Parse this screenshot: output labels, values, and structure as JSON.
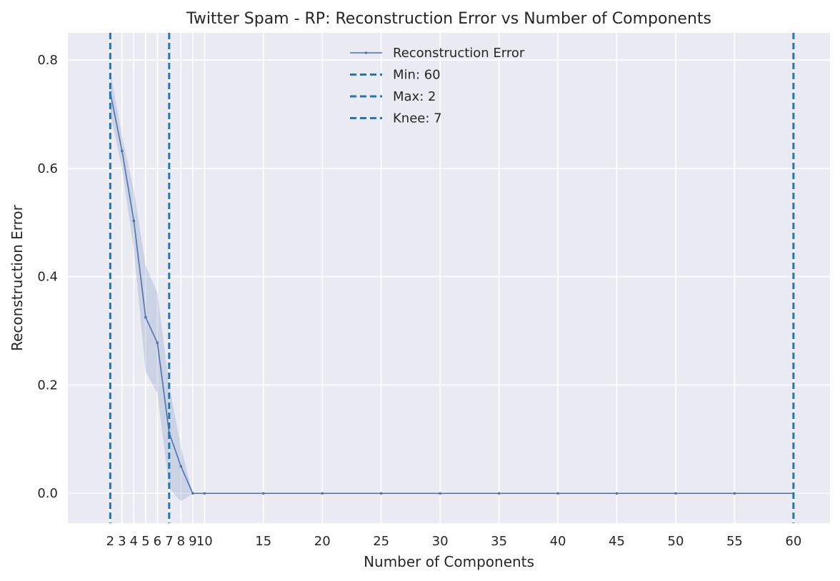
{
  "chart_data": {
    "type": "line",
    "title": "Twitter Spam - RP: Reconstruction Error vs Number of Components",
    "xlabel": "Number of Components",
    "ylabel": "Reconstruction Error",
    "xlim": [
      -1.6,
      63.1
    ],
    "ylim": [
      -0.055,
      0.85
    ],
    "grid": true,
    "legend_position": "upper center",
    "x_ticks": [
      2,
      3,
      4,
      5,
      6,
      7,
      8,
      9,
      10,
      15,
      20,
      25,
      30,
      35,
      40,
      45,
      50,
      55,
      60
    ],
    "y_ticks": [
      0.0,
      0.2,
      0.4,
      0.6,
      0.8
    ],
    "y_tick_labels": [
      "0.0",
      "0.2",
      "0.4",
      "0.6",
      "0.8"
    ],
    "series": [
      {
        "name": "Reconstruction Error",
        "color": "#4c72b0",
        "x": [
          2,
          3,
          4,
          5,
          6,
          7,
          8,
          9,
          10,
          15,
          20,
          25,
          30,
          35,
          40,
          45,
          50,
          55,
          60
        ],
        "y": [
          0.74,
          0.632,
          0.503,
          0.325,
          0.278,
          0.112,
          0.05,
          0.0,
          0.0,
          0.0,
          0.0,
          0.0,
          0.0,
          0.0,
          0.0,
          0.0,
          0.0,
          0.0,
          0.0
        ],
        "band_upper": [
          0.78,
          0.66,
          0.56,
          0.42,
          0.37,
          0.2,
          0.085,
          0.0,
          0.0,
          0.0,
          0.0,
          0.0,
          0.0,
          0.0,
          0.0,
          0.0,
          0.0,
          0.0,
          0.0
        ],
        "band_lower": [
          0.7,
          0.6,
          0.45,
          0.225,
          0.185,
          0.01,
          -0.015,
          0.0,
          0.0,
          0.0,
          0.0,
          0.0,
          0.0,
          0.0,
          0.0,
          0.0,
          0.0,
          0.0,
          0.0
        ]
      }
    ],
    "vertical_lines": [
      {
        "label": "Min: 60",
        "x": 60,
        "color": "#1f77b4",
        "style": "dashed"
      },
      {
        "label": "Max: 2",
        "x": 2,
        "color": "#1f77b4",
        "style": "dashed"
      },
      {
        "label": "Knee: 7",
        "x": 7,
        "color": "#1f77b4",
        "style": "dashed"
      }
    ],
    "background_color": "#eaeaf2",
    "grid_color": "#ffffff"
  }
}
